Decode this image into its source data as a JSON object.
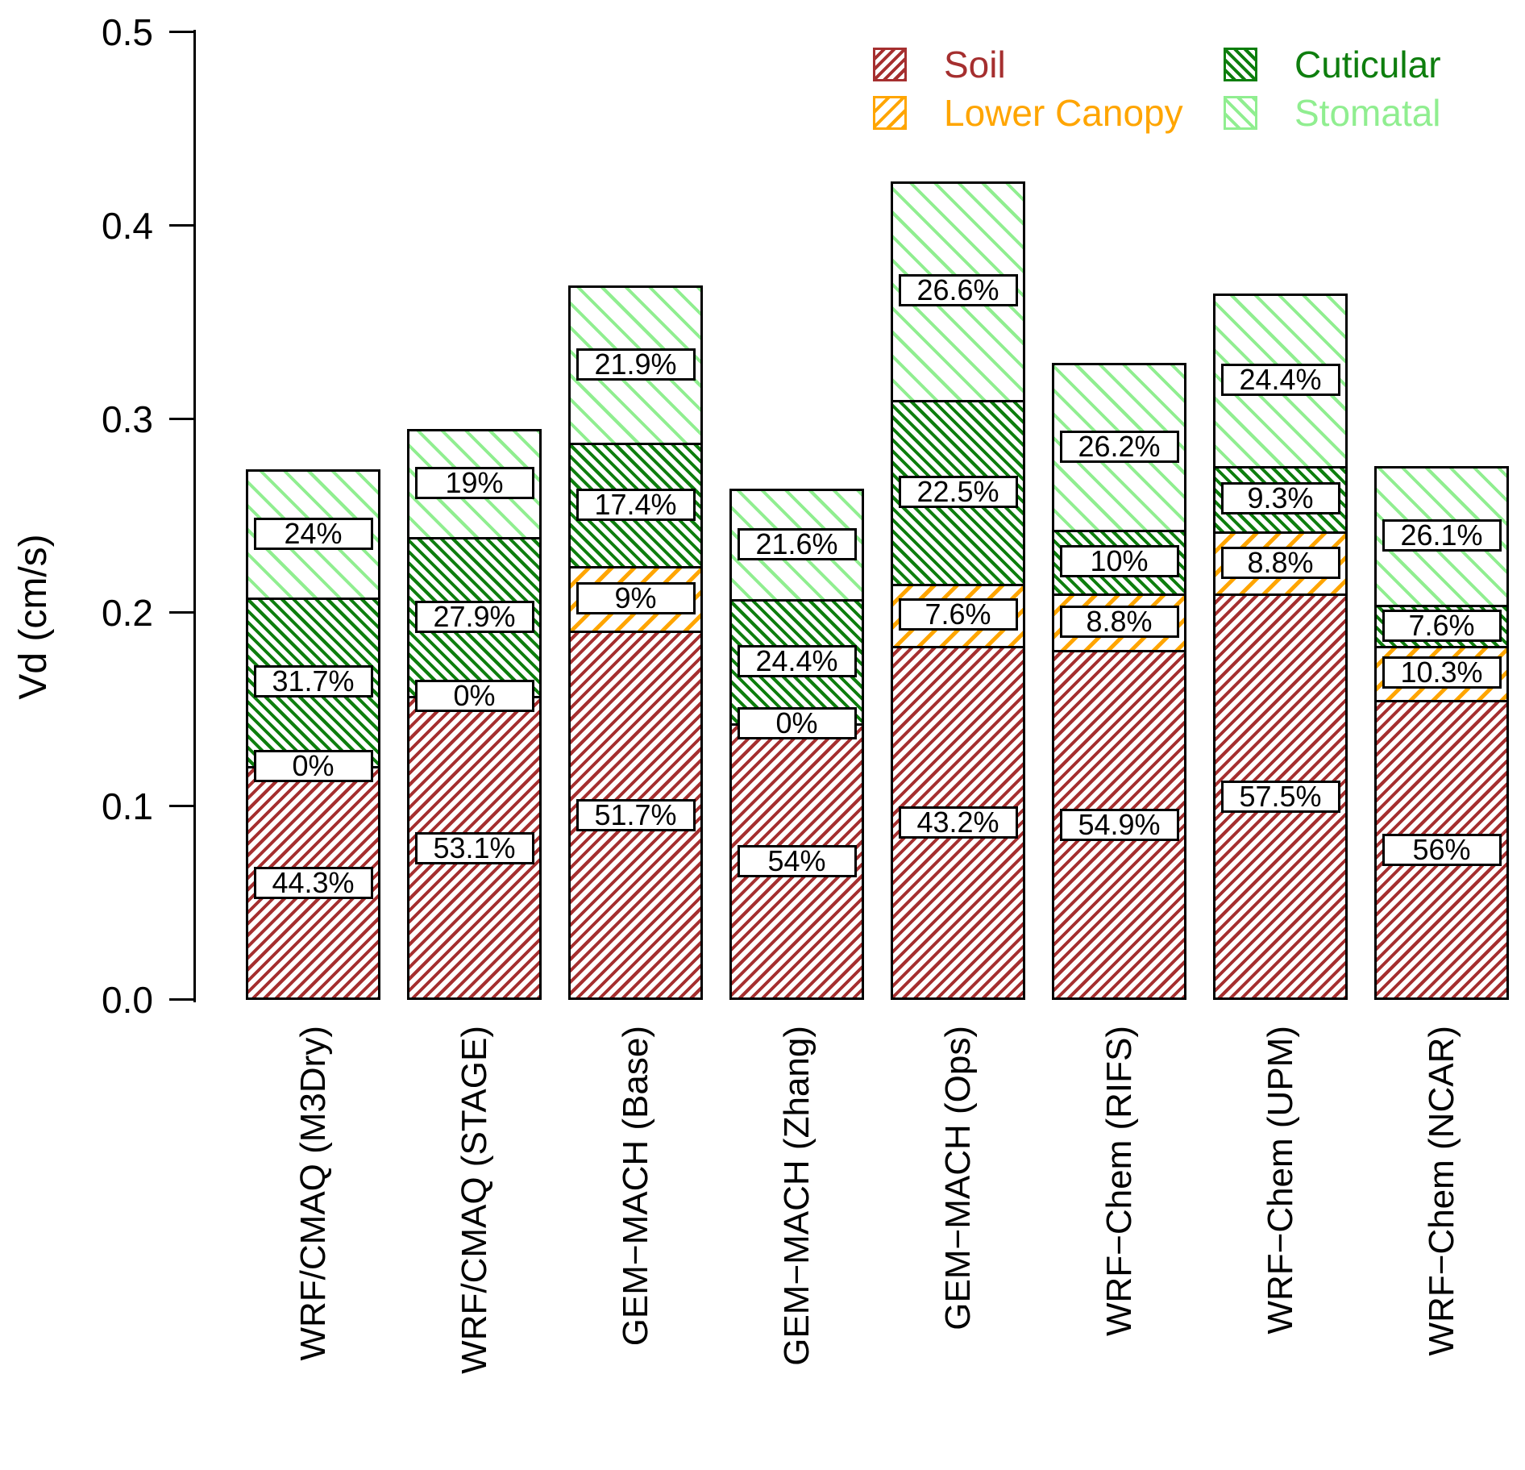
{
  "chart_data": {
    "type": "bar",
    "stacked": true,
    "ylabel": "Vd (cm/s)",
    "ylim": [
      0.0,
      0.5
    ],
    "yticks": [
      {
        "value": 0.0,
        "label": "0.0"
      },
      {
        "value": 0.1,
        "label": "0.1"
      },
      {
        "value": 0.2,
        "label": "0.2"
      },
      {
        "value": 0.3,
        "label": "0.3"
      },
      {
        "value": 0.4,
        "label": "0.4"
      },
      {
        "value": 0.5,
        "label": "0.5"
      }
    ],
    "grid": false,
    "legend_position": "top-right",
    "legend": [
      {
        "key": "soil",
        "label": "Soil",
        "color": "#a52f2f",
        "hatch": "/"
      },
      {
        "key": "lower_canopy",
        "label": "Lower Canopy",
        "color": "#FFA500",
        "hatch": "/"
      },
      {
        "key": "cuticular",
        "label": "Cuticular",
        "color": "#0e7e0e",
        "hatch": "\\"
      },
      {
        "key": "stomatal",
        "label": "Stomatal",
        "color": "#90EE90",
        "hatch": "\\"
      }
    ],
    "categories": [
      "WRF/CMAQ (M3Dry)",
      "WRF/CMAQ (STAGE)",
      "GEM−MACH (Base)",
      "GEM−MACH (Zhang)",
      "GEM−MACH (Ops)",
      "WRF−Chem (RIFS)",
      "WRF−Chem (UPM)",
      "WRF−Chem (NCAR)"
    ],
    "bars": [
      {
        "category": "WRF/CMAQ (M3Dry)",
        "total": 0.274,
        "segments": [
          {
            "key": "soil",
            "value": 0.121,
            "pct_label": "44.3%"
          },
          {
            "key": "lower_canopy",
            "value": 0.0,
            "pct_label": "0%"
          },
          {
            "key": "cuticular",
            "value": 0.087,
            "pct_label": "31.7%"
          },
          {
            "key": "stomatal",
            "value": 0.066,
            "pct_label": "24%"
          }
        ]
      },
      {
        "category": "WRF/CMAQ (STAGE)",
        "total": 0.295,
        "segments": [
          {
            "key": "soil",
            "value": 0.157,
            "pct_label": "53.1%"
          },
          {
            "key": "lower_canopy",
            "value": 0.0,
            "pct_label": "0%"
          },
          {
            "key": "cuticular",
            "value": 0.082,
            "pct_label": "27.9%"
          },
          {
            "key": "stomatal",
            "value": 0.056,
            "pct_label": "19%"
          }
        ]
      },
      {
        "category": "GEM−MACH (Base)",
        "total": 0.369,
        "segments": [
          {
            "key": "soil",
            "value": 0.191,
            "pct_label": "51.7%"
          },
          {
            "key": "lower_canopy",
            "value": 0.033,
            "pct_label": "9%"
          },
          {
            "key": "cuticular",
            "value": 0.064,
            "pct_label": "17.4%"
          },
          {
            "key": "stomatal",
            "value": 0.081,
            "pct_label": "21.9%"
          }
        ]
      },
      {
        "category": "GEM−MACH (Zhang)",
        "total": 0.264,
        "segments": [
          {
            "key": "soil",
            "value": 0.143,
            "pct_label": "54%"
          },
          {
            "key": "lower_canopy",
            "value": 0.0,
            "pct_label": "0%"
          },
          {
            "key": "cuticular",
            "value": 0.064,
            "pct_label": "24.4%"
          },
          {
            "key": "stomatal",
            "value": 0.057,
            "pct_label": "21.6%"
          }
        ]
      },
      {
        "category": "GEM−MACH (Ops)",
        "total": 0.423,
        "segments": [
          {
            "key": "soil",
            "value": 0.183,
            "pct_label": "43.2%"
          },
          {
            "key": "lower_canopy",
            "value": 0.032,
            "pct_label": "7.6%"
          },
          {
            "key": "cuticular",
            "value": 0.095,
            "pct_label": "22.5%"
          },
          {
            "key": "stomatal",
            "value": 0.113,
            "pct_label": "26.6%"
          }
        ]
      },
      {
        "category": "WRF−Chem (RIFS)",
        "total": 0.329,
        "segments": [
          {
            "key": "soil",
            "value": 0.181,
            "pct_label": "54.9%"
          },
          {
            "key": "lower_canopy",
            "value": 0.029,
            "pct_label": "8.8%"
          },
          {
            "key": "cuticular",
            "value": 0.033,
            "pct_label": "10%"
          },
          {
            "key": "stomatal",
            "value": 0.086,
            "pct_label": "26.2%"
          }
        ]
      },
      {
        "category": "WRF−Chem (UPM)",
        "total": 0.365,
        "segments": [
          {
            "key": "soil",
            "value": 0.21,
            "pct_label": "57.5%"
          },
          {
            "key": "lower_canopy",
            "value": 0.032,
            "pct_label": "8.8%"
          },
          {
            "key": "cuticular",
            "value": 0.034,
            "pct_label": "9.3%"
          },
          {
            "key": "stomatal",
            "value": 0.089,
            "pct_label": "24.4%"
          }
        ]
      },
      {
        "category": "WRF−Chem (NCAR)",
        "total": 0.276,
        "segments": [
          {
            "key": "soil",
            "value": 0.155,
            "pct_label": "56%"
          },
          {
            "key": "lower_canopy",
            "value": 0.028,
            "pct_label": "10.3%"
          },
          {
            "key": "cuticular",
            "value": 0.021,
            "pct_label": "7.6%"
          },
          {
            "key": "stomatal",
            "value": 0.072,
            "pct_label": "26.1%"
          }
        ]
      }
    ]
  }
}
